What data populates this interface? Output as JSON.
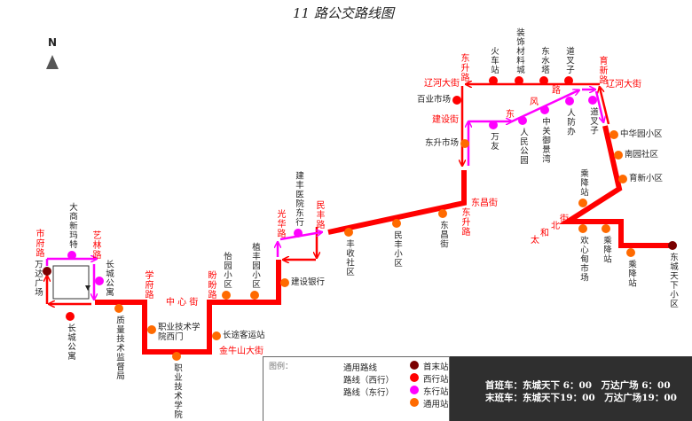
{
  "title": "11 路公交路线图",
  "north_label": "N",
  "colors": {
    "route": "#ff0000",
    "east": "#ff00ff",
    "terminal": "#7a0000",
    "west_station": "#ff0000",
    "east_station": "#ff00ff",
    "common_station": "#ff6a00",
    "schedule_bg": "#2f2f2f"
  },
  "stations": [
    {
      "name": "万达广场",
      "type": "terminal"
    },
    {
      "name": "长城公寓",
      "type": "west"
    },
    {
      "name": "大商新玛特",
      "type": "east"
    },
    {
      "name": "长城公寓",
      "type": "east"
    },
    {
      "name": "质量技术监督局",
      "type": "common"
    },
    {
      "name": "职业技术学院西门",
      "type": "common"
    },
    {
      "name": "职业技术学院",
      "type": "common"
    },
    {
      "name": "长途客运站",
      "type": "common"
    },
    {
      "name": "怡园小区",
      "type": "common"
    },
    {
      "name": "植丰园小区",
      "type": "common"
    },
    {
      "name": "建设银行",
      "type": "common"
    },
    {
      "name": "建丰医院东行",
      "type": "east"
    },
    {
      "name": "丰收社区",
      "type": "common"
    },
    {
      "name": "民丰小区",
      "type": "common"
    },
    {
      "name": "东昌街",
      "type": "common"
    },
    {
      "name": "东升市场",
      "type": "common"
    },
    {
      "name": "百业市场",
      "type": "west"
    },
    {
      "name": "火车站",
      "type": "west"
    },
    {
      "name": "装饰材料城",
      "type": "west"
    },
    {
      "name": "东水塔",
      "type": "west"
    },
    {
      "name": "道叉子",
      "type": "west"
    },
    {
      "name": "万友",
      "type": "east"
    },
    {
      "name": "人民公园",
      "type": "east"
    },
    {
      "name": "中关御景湾",
      "type": "east"
    },
    {
      "name": "人防办",
      "type": "east"
    },
    {
      "name": "道叉子",
      "type": "east"
    },
    {
      "name": "中华园小区",
      "type": "common"
    },
    {
      "name": "南园社区",
      "type": "common"
    },
    {
      "name": "育新小区",
      "type": "common"
    },
    {
      "name": "乘降站",
      "type": "common"
    },
    {
      "name": "欢心甸市场",
      "type": "common"
    },
    {
      "name": "乘降站",
      "type": "common"
    },
    {
      "name": "乘降站",
      "type": "common"
    },
    {
      "name": "东城天下小区",
      "type": "terminal"
    }
  ],
  "streets": [
    {
      "name": "市府路"
    },
    {
      "name": "艺林路"
    },
    {
      "name": "学府路"
    },
    {
      "name": "中 心 街"
    },
    {
      "name": "盼盼路"
    },
    {
      "name": "金牛山大街"
    },
    {
      "name": "光华路"
    },
    {
      "name": "民丰路"
    },
    {
      "name": "东昌街"
    },
    {
      "name": "东升路"
    },
    {
      "name": "东升路"
    },
    {
      "name": "辽河大街"
    },
    {
      "name": "建设街"
    },
    {
      "name": "东"
    },
    {
      "name": "风"
    },
    {
      "name": "路"
    },
    {
      "name": "育新路"
    },
    {
      "name": "辽河大街"
    },
    {
      "name": "太"
    },
    {
      "name": "和"
    },
    {
      "name": "北"
    },
    {
      "name": "街"
    }
  ],
  "legend": {
    "header": "图例：",
    "lines": [
      {
        "label": "通用路线"
      },
      {
        "label": "路线（西行）"
      },
      {
        "label": "路线（东行）"
      }
    ],
    "stations": [
      {
        "label": "首末站"
      },
      {
        "label": "西行站"
      },
      {
        "label": "东行站"
      },
      {
        "label": "通用站"
      }
    ]
  },
  "schedule": {
    "first": "首班车：东城天下 6：00　万达广场 6：00",
    "last": "末班车：东城天下19：00　万达广场19：00"
  }
}
